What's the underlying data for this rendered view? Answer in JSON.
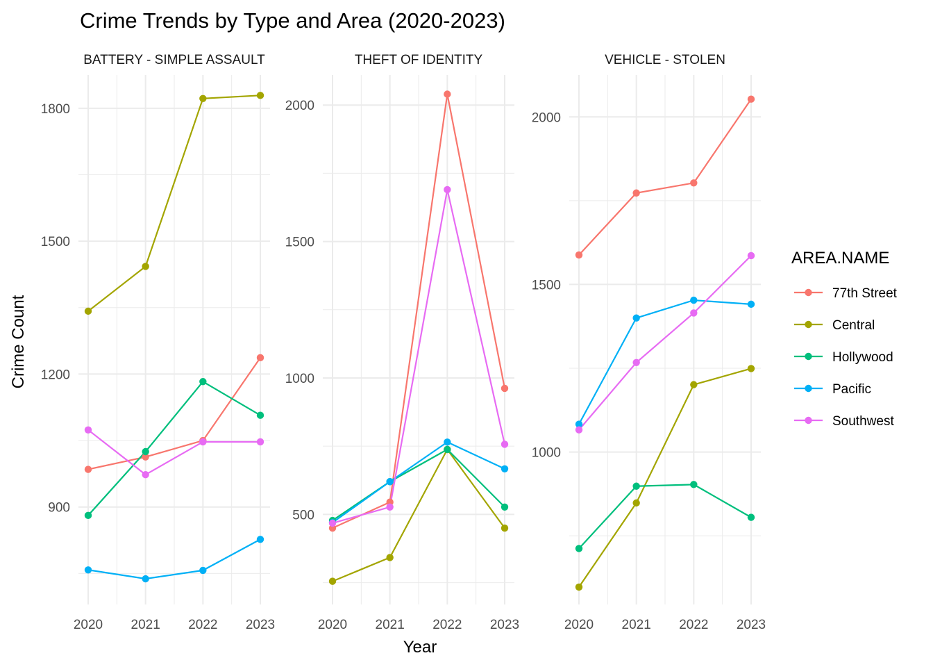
{
  "chart_data": {
    "type": "line",
    "title": "Crime Trends by Type and Area (2020-2023)",
    "xlabel": "Year",
    "ylabel": "Crime Count",
    "legend_title": "AREA.NAME",
    "legend_position": "right",
    "grid": true,
    "x": [
      "2020",
      "2021",
      "2022",
      "2023"
    ],
    "colors": {
      "77th Street": "#F8766D",
      "Central": "#A3A500",
      "Hollywood": "#00BF7D",
      "Pacific": "#00B0F6",
      "Southwest": "#E76BF3"
    },
    "legend_entries": [
      "77th Street",
      "Central",
      "Hollywood",
      "Pacific",
      "Southwest"
    ],
    "panels": [
      {
        "strip_label": "BATTERY - SIMPLE ASSAULT",
        "ylim": [
          680,
          1875
        ],
        "yticks": [
          900,
          1200,
          1500,
          1800
        ],
        "series": [
          {
            "name": "77th Street",
            "values": [
              985,
              1013,
              1050,
              1237
            ]
          },
          {
            "name": "Central",
            "values": [
              1342,
              1443,
              1822,
              1829
            ]
          },
          {
            "name": "Hollywood",
            "values": [
              881,
              1025,
              1183,
              1107
            ]
          },
          {
            "name": "Pacific",
            "values": [
              758,
              738,
              757,
              827
            ]
          },
          {
            "name": "Southwest",
            "values": [
              1074,
              973,
              1047,
              1047
            ]
          }
        ]
      },
      {
        "strip_label": "THEFT OF IDENTITY",
        "ylim": [
          170,
          2110
        ],
        "yticks": [
          500,
          1000,
          1500,
          2000
        ],
        "series": [
          {
            "name": "77th Street",
            "values": [
              450,
              545,
              2040,
              962
            ]
          },
          {
            "name": "Central",
            "values": [
              255,
              342,
              738,
              450
            ]
          },
          {
            "name": "Hollywood",
            "values": [
              478,
              620,
              738,
              527
            ]
          },
          {
            "name": "Pacific",
            "values": [
              470,
              620,
              765,
              667
            ]
          },
          {
            "name": "Southwest",
            "values": [
              468,
              527,
              1690,
              757
            ]
          }
        ]
      },
      {
        "strip_label": "VEHICLE - STOLEN",
        "ylim": [
          545,
          2125
        ],
        "yticks": [
          1000,
          1500,
          2000
        ],
        "series": [
          {
            "name": "77th Street",
            "values": [
              1588,
              1773,
              1803,
              2053
            ]
          },
          {
            "name": "Central",
            "values": [
              597,
              848,
              1201,
              1249
            ]
          },
          {
            "name": "Hollywood",
            "values": [
              712,
              898,
              903,
              805
            ]
          },
          {
            "name": "Pacific",
            "values": [
              1083,
              1400,
              1453,
              1441
            ]
          },
          {
            "name": "Southwest",
            "values": [
              1066,
              1267,
              1415,
              1586
            ]
          }
        ]
      }
    ]
  }
}
